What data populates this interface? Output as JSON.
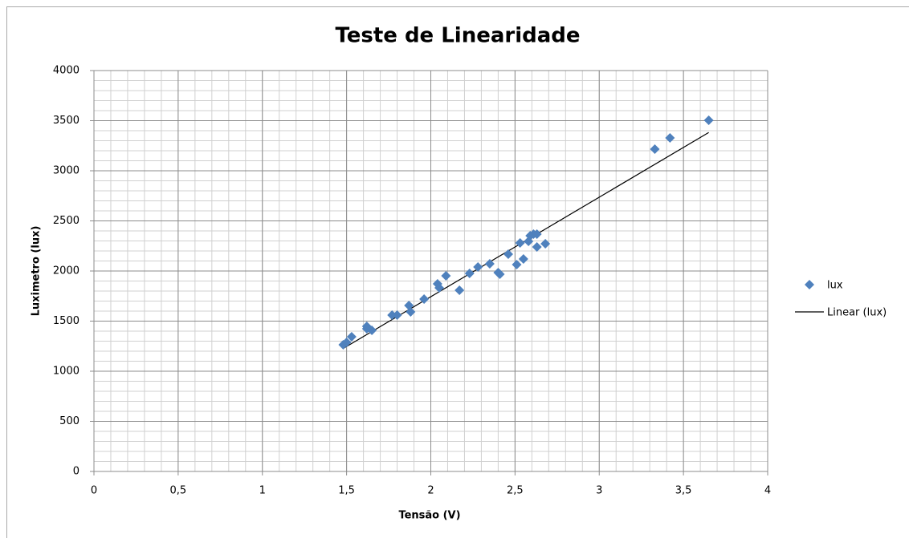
{
  "chart_data": {
    "type": "scatter",
    "title": "Teste de Linearidade",
    "x_label": "Tensão (V)",
    "y_label": "Luximetro (lux)",
    "series": [
      {
        "name": "lux",
        "color": "#4f81bd",
        "x": [
          1.48,
          1.5,
          1.53,
          1.62,
          1.62,
          1.65,
          1.77,
          1.8,
          1.87,
          1.88,
          1.96,
          2.04,
          2.05,
          2.09,
          2.17,
          2.23,
          2.28,
          2.35,
          2.4,
          2.41,
          2.46,
          2.51,
          2.53,
          2.55,
          2.58,
          2.59,
          2.61,
          2.63,
          2.63,
          2.68,
          3.33,
          3.42,
          3.65
        ],
        "values": [
          1264,
          1288,
          1344,
          1424,
          1448,
          1408,
          1560,
          1560,
          1656,
          1592,
          1720,
          1872,
          1832,
          1952,
          1808,
          1976,
          2040,
          2072,
          1984,
          1968,
          2168,
          2064,
          2280,
          2120,
          2296,
          2352,
          2368,
          2368,
          2240,
          2272,
          3216,
          3328,
          3504
        ]
      }
    ],
    "trendline": {
      "name": "Linear (lux)",
      "type": "linear",
      "color": "#000000"
    },
    "xlim": [
      0,
      4
    ],
    "xticks": [
      0,
      {
        "value": 0.5,
        "label": "0,5"
      },
      1,
      {
        "value": 1.5,
        "label": "1,5"
      },
      2,
      {
        "value": 2.5,
        "label": "2,5"
      },
      3,
      {
        "value": 3.5,
        "label": "3,5"
      },
      4
    ],
    "ylim": [
      0,
      4000
    ],
    "yticks": [
      0,
      500,
      1000,
      1500,
      2000,
      2500,
      3000,
      3500,
      4000
    ],
    "grid": true,
    "minor_grid": {
      "x_step": 0.1,
      "y_step": 100
    },
    "legend": "right"
  }
}
